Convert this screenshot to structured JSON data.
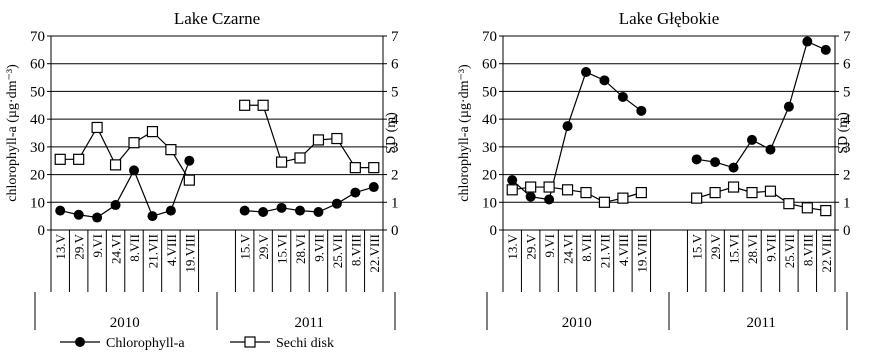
{
  "chart_data": [
    {
      "type": "line",
      "title": "Lake Czarne",
      "ylabel": "chlorophyll-a (µg·dm⁻³)",
      "y2label": "SD (m)",
      "ylim": [
        0,
        70
      ],
      "y2lim": [
        0,
        7
      ],
      "yticks": [
        "0",
        "10",
        "20",
        "30",
        "40",
        "50",
        "60",
        "70"
      ],
      "y2ticks": [
        "0",
        "1",
        "2",
        "3",
        "4",
        "5",
        "6",
        "7"
      ],
      "grid": true,
      "groups": [
        {
          "label": "2010",
          "categories": [
            "13.V",
            "29.V",
            "9.VI",
            "24.VI",
            "8.VII",
            "21.VII",
            "4.VIII",
            "19.VIII"
          ]
        },
        {
          "label": "2011",
          "categories": [
            "15.V",
            "29.V",
            "15.VI",
            "28.VI",
            "9.VII",
            "25.VII",
            "8.VIII",
            "22.VIII"
          ]
        }
      ],
      "series": [
        {
          "name": "Chlorophyll-a",
          "axis": "left",
          "marker": "filled-circle",
          "values": [
            [
              7,
              5.5,
              4.5,
              9,
              21.5,
              5,
              7,
              25
            ],
            [
              7,
              6.5,
              8,
              7,
              6.5,
              9.5,
              13.5,
              15.5
            ]
          ]
        },
        {
          "name": "Sechi disk",
          "axis": "right",
          "marker": "open-square",
          "values": [
            [
              2.55,
              2.55,
              3.7,
              2.35,
              3.15,
              3.55,
              2.9,
              1.8
            ],
            [
              4.5,
              4.5,
              2.45,
              2.6,
              3.25,
              3.3,
              2.25,
              2.25
            ]
          ]
        }
      ]
    },
    {
      "type": "line",
      "title": "Lake Głębokie",
      "ylabel": "chlorophyll-a (µg·dm⁻³)",
      "y2label": "SD (m)",
      "ylim": [
        0,
        70
      ],
      "y2lim": [
        0,
        7
      ],
      "yticks": [
        "0",
        "10",
        "20",
        "30",
        "40",
        "50",
        "60",
        "70"
      ],
      "y2ticks": [
        "0",
        "1",
        "2",
        "3",
        "4",
        "5",
        "6",
        "7"
      ],
      "grid": true,
      "groups": [
        {
          "label": "2010",
          "categories": [
            "13.V",
            "29.V",
            "9.VI",
            "24.VI",
            "8.VII",
            "21.VII",
            "4.VIII",
            "19.VIII"
          ]
        },
        {
          "label": "2011",
          "categories": [
            "15.V",
            "29.V",
            "15.VI",
            "28.VI",
            "9.VII",
            "25.VII",
            "8.VIII",
            "22.VIII"
          ]
        }
      ],
      "series": [
        {
          "name": "Chlorophyll-a",
          "axis": "left",
          "marker": "filled-circle",
          "values": [
            [
              18,
              12,
              11,
              37.5,
              57,
              54,
              48,
              43
            ],
            [
              25.5,
              24.5,
              22.5,
              32.5,
              29,
              44.5,
              68,
              65
            ]
          ]
        },
        {
          "name": "Sechi disk",
          "axis": "right",
          "marker": "open-square",
          "values": [
            [
              1.45,
              1.55,
              1.55,
              1.45,
              1.35,
              1.0,
              1.15,
              1.35
            ],
            [
              1.15,
              1.35,
              1.55,
              1.35,
              1.4,
              0.95,
              0.8,
              0.7
            ]
          ]
        }
      ]
    }
  ],
  "legend": [
    {
      "label": "Chlorophyll-a",
      "marker": "filled-circle"
    },
    {
      "label": "Sechi disk",
      "marker": "open-square"
    }
  ]
}
